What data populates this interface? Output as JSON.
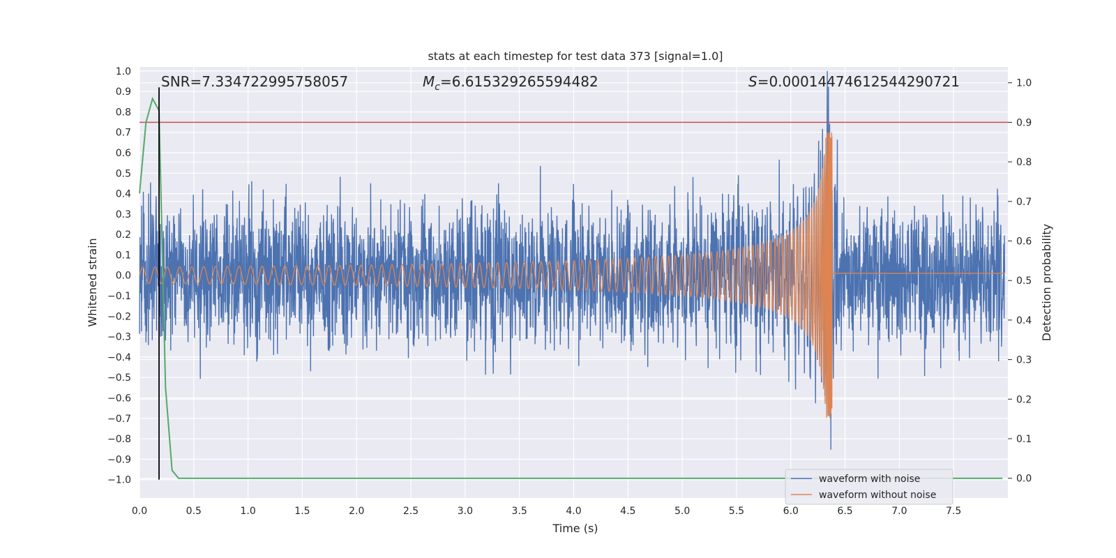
{
  "chart_data": {
    "type": "line",
    "title": "stats at each timestep for test data 373 [signal=1.0]",
    "xlabel": "Time (s)",
    "ylabel_left": "Whitened strain",
    "ylabel_right": "Detection probability",
    "xlim": [
      0.0,
      8.0
    ],
    "ylim_left": [
      -1.09,
      1.02
    ],
    "ylim_right": [
      -0.05,
      1.04
    ],
    "x_ticks": [
      0.0,
      0.5,
      1.0,
      1.5,
      2.0,
      2.5,
      3.0,
      3.5,
      4.0,
      4.5,
      5.0,
      5.5,
      6.0,
      6.5,
      7.0,
      7.5
    ],
    "x_tick_labels": [
      "0.0",
      "0.5",
      "1.0",
      "1.5",
      "2.0",
      "2.5",
      "3.0",
      "3.5",
      "4.0",
      "4.5",
      "5.0",
      "5.5",
      "6.0",
      "6.5",
      "7.0",
      "7.5"
    ],
    "y_left_ticks": [
      1.0,
      0.9,
      0.8,
      0.7,
      0.6,
      0.5,
      0.4,
      0.3,
      0.2,
      0.1,
      0.0,
      -0.1,
      -0.2,
      -0.3,
      -0.4,
      -0.5,
      -0.6,
      -0.7,
      -0.8,
      -0.9,
      -1.0
    ],
    "y_left_tick_labels": [
      "1.0",
      "0.9",
      "0.8",
      "0.7",
      "0.6",
      "0.5",
      "0.4",
      "0.3",
      "0.2",
      "0.1",
      "0.0",
      "−0.1",
      "−0.2",
      "−0.3",
      "−0.4",
      "−0.5",
      "−0.6",
      "−0.7",
      "−0.8",
      "−0.9",
      "−1.0"
    ],
    "y_right_ticks": [
      1.0,
      0.9,
      0.8,
      0.7,
      0.6,
      0.5,
      0.4,
      0.3,
      0.2,
      0.1,
      0.0
    ],
    "y_right_tick_labels": [
      "1.0",
      "0.9",
      "0.8",
      "0.7",
      "0.6",
      "0.5",
      "0.4",
      "0.3",
      "0.2",
      "0.1",
      "0.0"
    ],
    "grid": true,
    "legend_position": "lower-right",
    "annotations": {
      "snr": "SNR=7.334722995758057",
      "mc_symbol": "M",
      "mc_subscript": "c",
      "mc_value": "=6.615329265594482",
      "s_symbol": "S",
      "s_value": "=0.00014474612544290721"
    },
    "series": [
      {
        "name": "waveform with noise",
        "color": "#4c72b0",
        "noise_envelope": 0.47,
        "signal_peak_time": 6.38
      },
      {
        "name": "waveform without noise",
        "color": "#dd8452",
        "start_amplitude": 0.04,
        "peak_amplitude": 0.7,
        "peak_time": 6.38,
        "ringdown_offset": 0.01
      }
    ],
    "detection_probability": {
      "color": "#55a868",
      "x": [
        0.0,
        0.06,
        0.12,
        0.18,
        0.24,
        0.3,
        0.36,
        0.42,
        7.95
      ],
      "y": [
        0.72,
        0.9,
        0.96,
        0.93,
        0.23,
        0.02,
        0.0,
        0.0,
        0.0
      ]
    },
    "threshold": {
      "color": "#c44e52",
      "value": 0.9
    },
    "trigger_time": {
      "color": "#000000",
      "value": 0.18,
      "y_from": -1.0,
      "y_to": 0.92
    }
  }
}
